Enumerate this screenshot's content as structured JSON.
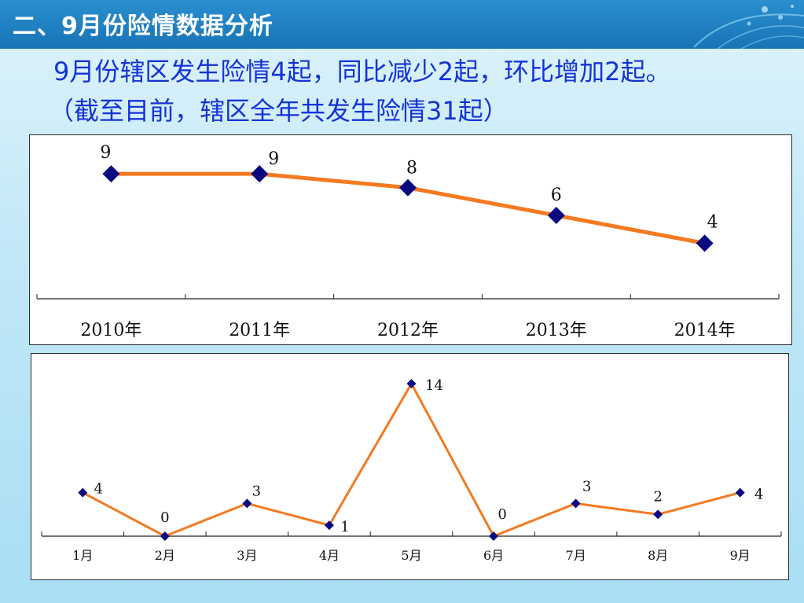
{
  "header": {
    "title": "二、9月份险情数据分析"
  },
  "summary": {
    "line1": "9月份辖区发生险情4起，同比减少2起，环比增加2起。",
    "line2": "（截至目前，辖区全年共发生险情31起）"
  },
  "colors": {
    "title_bar": "#1874b6",
    "headline": "#1433d6",
    "line": "#f47a20",
    "marker": "#0a0a80"
  },
  "chart_data": [
    {
      "type": "line",
      "categories": [
        "2010年",
        "2011年",
        "2012年",
        "2013年",
        "2014年"
      ],
      "values": [
        9,
        9,
        8,
        6,
        4
      ],
      "ylim": [
        0,
        9.4
      ],
      "grid": false,
      "data_labels": [
        "9",
        "9",
        "8",
        "6",
        "4"
      ]
    },
    {
      "type": "line",
      "categories": [
        "1月",
        "2月",
        "3月",
        "4月",
        "5月",
        "6月",
        "7月",
        "8月",
        "9月"
      ],
      "values": [
        4,
        0,
        3,
        1,
        14,
        0,
        3,
        2,
        4
      ],
      "ylim": [
        0,
        14
      ],
      "grid": false,
      "data_labels": [
        "4",
        "0",
        "3",
        "1",
        "14",
        "0",
        "3",
        "2",
        "4"
      ]
    }
  ]
}
